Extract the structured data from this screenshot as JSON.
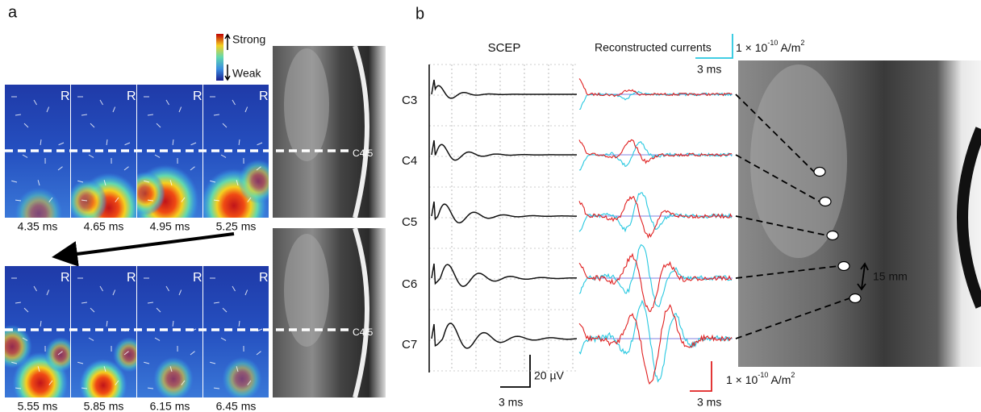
{
  "panel_a": {
    "label": "a",
    "colorbar": {
      "high": "Strong",
      "low": "Weak"
    },
    "frames": [
      {
        "time": "4.35 ms",
        "side": "R"
      },
      {
        "time": "4.65 ms",
        "side": "R"
      },
      {
        "time": "4.95 ms",
        "side": "R"
      },
      {
        "time": "5.25 ms",
        "side": "R"
      },
      {
        "time": "5.55 ms",
        "side": "R"
      },
      {
        "time": "5.85 ms",
        "side": "R"
      },
      {
        "time": "6.15 ms",
        "side": "R"
      },
      {
        "time": "6.45 ms",
        "side": "R"
      }
    ],
    "level_labels": [
      "C4/5",
      "C4/5"
    ]
  },
  "panel_b": {
    "label": "b",
    "scep_title": "SCEP",
    "currents_title": "Reconstructed currents",
    "channels": [
      "C3",
      "C4",
      "C5",
      "C6",
      "C7"
    ],
    "scep_scale": {
      "amplitude": "20 µV",
      "time": "3 ms"
    },
    "current_scale_cyan": {
      "mantissa": "1 × 10",
      "exponent": "-10",
      "unit": " A/m",
      "unit_exponent": "2",
      "time": "3 ms"
    },
    "current_scale_red": {
      "mantissa": "1 × 10",
      "exponent": "-10",
      "unit": " A/m",
      "unit_exponent": "2",
      "time": "3 ms"
    },
    "distance": "15 mm"
  }
}
